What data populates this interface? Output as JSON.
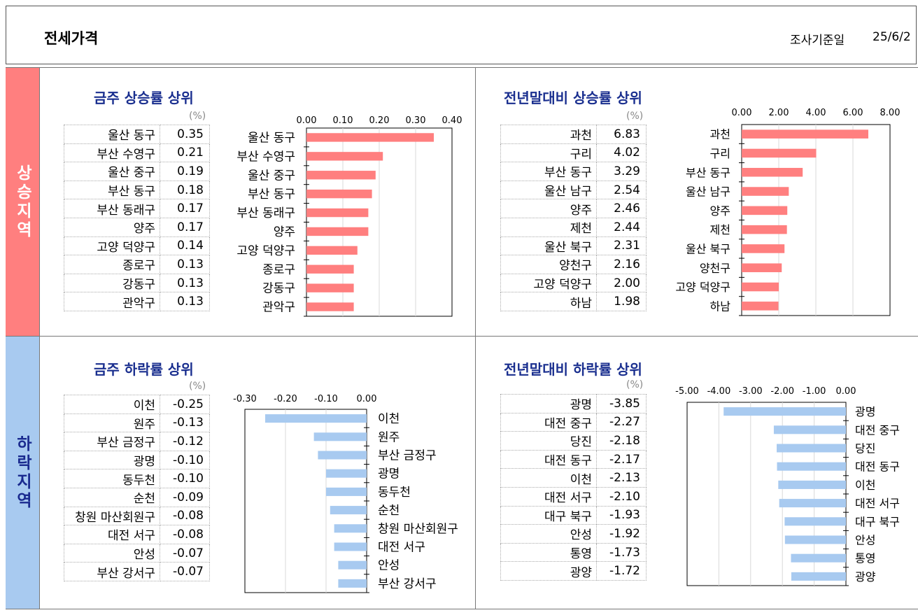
{
  "header": {
    "title": "전세가격",
    "date_label": "조사기준일",
    "date_value": "25/6/2"
  },
  "sides": {
    "up": "상승지역",
    "down": "하락지역"
  },
  "colors": {
    "rise": "#ff7f7f",
    "fall": "#a8caf0",
    "title": "#1a2f8f"
  },
  "chart_data": [
    {
      "type": "bar",
      "title": "금주 상승률 상위",
      "unit": "(%)",
      "categories": [
        "울산 동구",
        "부산 수영구",
        "울산 중구",
        "부산 동구",
        "부산 동래구",
        "양주",
        "고양 덕양구",
        "종로구",
        "강동구",
        "관악구"
      ],
      "values": [
        0.35,
        0.21,
        0.19,
        0.18,
        0.17,
        0.17,
        0.14,
        0.13,
        0.13,
        0.13
      ],
      "display": [
        "0.35",
        "0.21",
        "0.19",
        "0.18",
        "0.17",
        "0.17",
        "0.14",
        "0.13",
        "0.13",
        "0.13"
      ],
      "ticks": [
        "0.00",
        "0.10",
        "0.20",
        "0.30",
        "0.40"
      ],
      "xlim": [
        0,
        0.4
      ],
      "grid": true,
      "color": "#ff7f7f"
    },
    {
      "type": "bar",
      "title": "전년말대비 상승률 상위",
      "unit": "(%)",
      "categories": [
        "과천",
        "구리",
        "부산 동구",
        "울산 남구",
        "양주",
        "제천",
        "울산 북구",
        "양천구",
        "고양 덕양구",
        "하남"
      ],
      "values": [
        6.83,
        4.02,
        3.29,
        2.54,
        2.46,
        2.44,
        2.31,
        2.16,
        2.0,
        1.98
      ],
      "display": [
        "6.83",
        "4.02",
        "3.29",
        "2.54",
        "2.46",
        "2.44",
        "2.31",
        "2.16",
        "2.00",
        "1.98"
      ],
      "ticks": [
        "0.00",
        "2.00",
        "4.00",
        "6.00",
        "8.00"
      ],
      "xlim": [
        0,
        8
      ],
      "grid": true,
      "color": "#ff7f7f"
    },
    {
      "type": "bar",
      "title": "금주 하락률 상위",
      "unit": "(%)",
      "categories": [
        "이천",
        "원주",
        "부산 금정구",
        "광명",
        "동두천",
        "순천",
        "창원 마산회원구",
        "대전 서구",
        "안성",
        "부산 강서구"
      ],
      "values": [
        -0.25,
        -0.13,
        -0.12,
        -0.1,
        -0.1,
        -0.09,
        -0.08,
        -0.08,
        -0.07,
        -0.07
      ],
      "display": [
        "-0.25",
        "-0.13",
        "-0.12",
        "-0.10",
        "-0.10",
        "-0.09",
        "-0.08",
        "-0.08",
        "-0.07",
        "-0.07"
      ],
      "ticks": [
        "-0.30",
        "-0.20",
        "-0.10",
        "0.00"
      ],
      "xlim": [
        -0.3,
        0
      ],
      "grid": true,
      "color": "#a8caf0"
    },
    {
      "type": "bar",
      "title": "전년말대비 하락률 상위",
      "unit": "(%)",
      "categories": [
        "광명",
        "대전 중구",
        "당진",
        "대전 동구",
        "이천",
        "대전 서구",
        "대구 북구",
        "안성",
        "통영",
        "광양"
      ],
      "values": [
        -3.85,
        -2.27,
        -2.18,
        -2.17,
        -2.13,
        -2.1,
        -1.93,
        -1.92,
        -1.73,
        -1.72
      ],
      "display": [
        "-3.85",
        "-2.27",
        "-2.18",
        "-2.17",
        "-2.13",
        "-2.10",
        "-1.93",
        "-1.92",
        "-1.73",
        "-1.72"
      ],
      "ticks": [
        "-5.00",
        "-4.00",
        "-3.00",
        "-2.00",
        "-1.00",
        "0.00"
      ],
      "xlim": [
        -5,
        0
      ],
      "grid": true,
      "color": "#a8caf0"
    }
  ]
}
